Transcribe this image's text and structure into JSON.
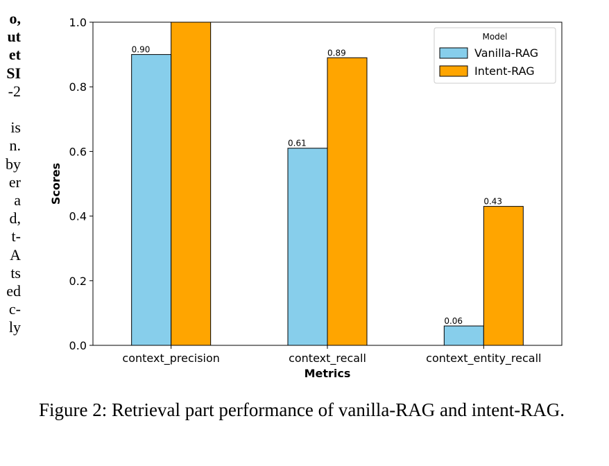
{
  "left_text_fragments": [
    {
      "text": "o,",
      "bold": true
    },
    {
      "text": "ut",
      "bold": true
    },
    {
      "text": "et",
      "bold": true
    },
    {
      "text": "SI",
      "bold": true
    },
    {
      "text": "-2",
      "bold": false
    },
    {
      "text": "",
      "bold": false
    },
    {
      "text": "is",
      "bold": false
    },
    {
      "text": "n.",
      "bold": false
    },
    {
      "text": "by",
      "bold": false
    },
    {
      "text": "er",
      "bold": false
    },
    {
      "text": "a",
      "bold": false
    },
    {
      "text": "d,",
      "bold": false
    },
    {
      "text": "t-",
      "bold": false
    },
    {
      "text": "A",
      "bold": false
    },
    {
      "text": "ts",
      "bold": false
    },
    {
      "text": "ed",
      "bold": false
    },
    {
      "text": "c-",
      "bold": false
    },
    {
      "text": "ly",
      "bold": false
    }
  ],
  "chart_data": {
    "type": "bar",
    "categories": [
      "context_precision",
      "context_recall",
      "context_entity_recall"
    ],
    "series": [
      {
        "name": "Vanilla-RAG",
        "values": [
          0.9,
          0.61,
          0.06
        ],
        "labels": [
          "0.90",
          "0.61",
          "0.06"
        ],
        "color": "#87ceeb"
      },
      {
        "name": "Intent-RAG",
        "values": [
          1.0,
          0.89,
          0.43
        ],
        "labels": [
          "",
          "0.89",
          "0.43"
        ],
        "color": "#ffa500"
      }
    ],
    "xlabel": "Metrics",
    "ylabel": "Scores",
    "ylim": [
      0,
      1.0
    ],
    "yticks": [
      0.0,
      0.2,
      0.4,
      0.6,
      0.8,
      1.0
    ],
    "ytick_labels": [
      "0.0",
      "0.2",
      "0.4",
      "0.6",
      "0.8",
      "1.0"
    ],
    "legend_title": "Model",
    "legend_position": "top-right",
    "grid": false
  },
  "caption": "Figure 2: Retrieval part performance of vanilla-RAG and intent-RAG."
}
